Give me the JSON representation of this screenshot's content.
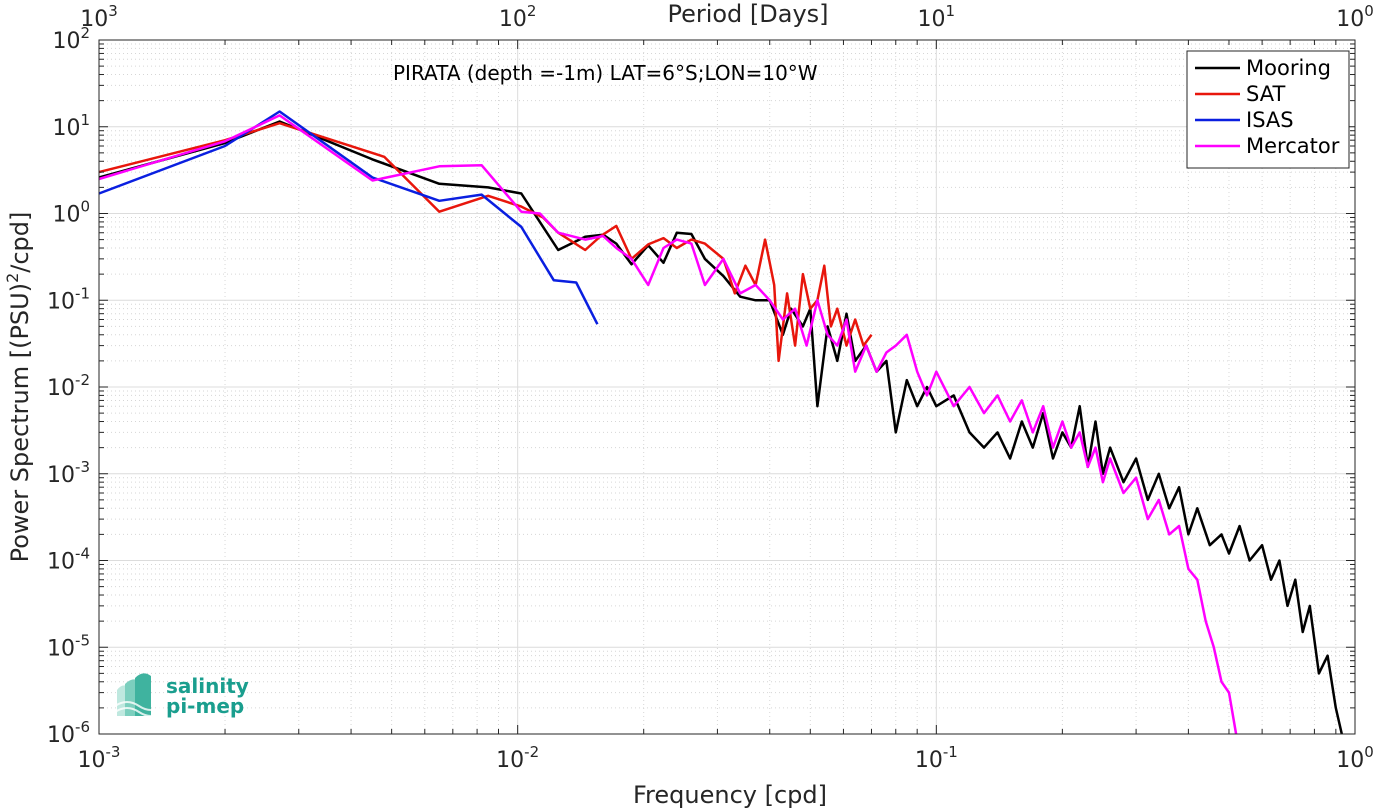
{
  "chart_data": {
    "type": "line",
    "annotation": "PIRATA (depth =-1m) LAT=6°S;LON=10°W",
    "xlabel": "Frequency [cpd]",
    "ylabel_pre": "Power Spectrum [(PSU)",
    "ylabel_sup": "2",
    "ylabel_post": "/cpd]",
    "top_axis_label": "Period [Days]",
    "x_scale": "log",
    "y_scale": "log",
    "xlim": [
      0.001,
      1
    ],
    "ylim": [
      1e-06,
      100
    ],
    "grid": true,
    "legend_position": "top-right",
    "x_ticks": [
      {
        "base": "10",
        "exp": "-3"
      },
      {
        "base": "10",
        "exp": "-2"
      },
      {
        "base": "10",
        "exp": "-1"
      },
      {
        "base": "10",
        "exp": "0"
      }
    ],
    "top_ticks": [
      {
        "base": "10",
        "exp": "3"
      },
      {
        "base": "10",
        "exp": "2"
      },
      {
        "base": "10",
        "exp": "1"
      },
      {
        "base": "10",
        "exp": "0"
      }
    ],
    "y_ticks": [
      {
        "base": "10",
        "exp": "-6"
      },
      {
        "base": "10",
        "exp": "-5"
      },
      {
        "base": "10",
        "exp": "-4"
      },
      {
        "base": "10",
        "exp": "-3"
      },
      {
        "base": "10",
        "exp": "-2"
      },
      {
        "base": "10",
        "exp": "-1"
      },
      {
        "base": "10",
        "exp": "0"
      },
      {
        "base": "10",
        "exp": "1"
      },
      {
        "base": "10",
        "exp": "2"
      }
    ],
    "series": [
      {
        "name": "Mooring",
        "color": "#000000",
        "points": [
          [
            0.001,
            2.6
          ],
          [
            0.002,
            6.5
          ],
          [
            0.0027,
            11.5
          ],
          [
            0.0045,
            4.2
          ],
          [
            0.0065,
            2.2
          ],
          [
            0.0085,
            2.0
          ],
          [
            0.0102,
            1.7
          ],
          [
            0.0115,
            0.7
          ],
          [
            0.0125,
            0.38
          ],
          [
            0.0145,
            0.54
          ],
          [
            0.016,
            0.57
          ],
          [
            0.0172,
            0.45
          ],
          [
            0.0187,
            0.26
          ],
          [
            0.0205,
            0.43
          ],
          [
            0.0223,
            0.27
          ],
          [
            0.024,
            0.6
          ],
          [
            0.026,
            0.58
          ],
          [
            0.028,
            0.3
          ],
          [
            0.031,
            0.19
          ],
          [
            0.034,
            0.11
          ],
          [
            0.037,
            0.1
          ],
          [
            0.04,
            0.1
          ],
          [
            0.043,
            0.04
          ],
          [
            0.045,
            0.08
          ],
          [
            0.048,
            0.05
          ],
          [
            0.05,
            0.08
          ],
          [
            0.052,
            0.006
          ],
          [
            0.055,
            0.05
          ],
          [
            0.058,
            0.02
          ],
          [
            0.061,
            0.07
          ],
          [
            0.064,
            0.02
          ],
          [
            0.068,
            0.03
          ],
          [
            0.072,
            0.015
          ],
          [
            0.076,
            0.02
          ],
          [
            0.08,
            0.003
          ],
          [
            0.085,
            0.012
          ],
          [
            0.09,
            0.006
          ],
          [
            0.095,
            0.01
          ],
          [
            0.1,
            0.006
          ],
          [
            0.11,
            0.008
          ],
          [
            0.12,
            0.003
          ],
          [
            0.13,
            0.002
          ],
          [
            0.14,
            0.003
          ],
          [
            0.15,
            0.0015
          ],
          [
            0.16,
            0.004
          ],
          [
            0.17,
            0.002
          ],
          [
            0.18,
            0.005
          ],
          [
            0.19,
            0.0015
          ],
          [
            0.2,
            0.003
          ],
          [
            0.21,
            0.002
          ],
          [
            0.22,
            0.006
          ],
          [
            0.23,
            0.0012
          ],
          [
            0.24,
            0.004
          ],
          [
            0.25,
            0.001
          ],
          [
            0.26,
            0.002
          ],
          [
            0.28,
            0.0008
          ],
          [
            0.3,
            0.0015
          ],
          [
            0.32,
            0.0005
          ],
          [
            0.34,
            0.001
          ],
          [
            0.36,
            0.0004
          ],
          [
            0.38,
            0.0007
          ],
          [
            0.4,
            0.0002
          ],
          [
            0.42,
            0.0004
          ],
          [
            0.45,
            0.00015
          ],
          [
            0.48,
            0.0002
          ],
          [
            0.5,
            0.00012
          ],
          [
            0.53,
            0.00025
          ],
          [
            0.56,
            0.0001
          ],
          [
            0.6,
            0.00015
          ],
          [
            0.63,
            6e-05
          ],
          [
            0.66,
            0.0001
          ],
          [
            0.69,
            3e-05
          ],
          [
            0.72,
            6e-05
          ],
          [
            0.75,
            1.5e-05
          ],
          [
            0.78,
            3e-05
          ],
          [
            0.82,
            5e-06
          ],
          [
            0.86,
            8e-06
          ],
          [
            0.9,
            2e-06
          ],
          [
            0.93,
            1e-06
          ]
        ]
      },
      {
        "name": "SAT",
        "color": "#e8160c",
        "points": [
          [
            0.001,
            3.0
          ],
          [
            0.002,
            7.0
          ],
          [
            0.0027,
            11.0
          ],
          [
            0.0048,
            4.5
          ],
          [
            0.0065,
            1.05
          ],
          [
            0.0085,
            1.6
          ],
          [
            0.0102,
            1.2
          ],
          [
            0.0115,
            0.9
          ],
          [
            0.0125,
            0.6
          ],
          [
            0.0145,
            0.38
          ],
          [
            0.0158,
            0.55
          ],
          [
            0.0172,
            0.72
          ],
          [
            0.0187,
            0.3
          ],
          [
            0.0205,
            0.44
          ],
          [
            0.0223,
            0.52
          ],
          [
            0.024,
            0.4
          ],
          [
            0.026,
            0.5
          ],
          [
            0.028,
            0.45
          ],
          [
            0.031,
            0.3
          ],
          [
            0.033,
            0.12
          ],
          [
            0.035,
            0.25
          ],
          [
            0.037,
            0.15
          ],
          [
            0.039,
            0.5
          ],
          [
            0.041,
            0.15
          ],
          [
            0.042,
            0.02
          ],
          [
            0.044,
            0.12
          ],
          [
            0.046,
            0.03
          ],
          [
            0.048,
            0.2
          ],
          [
            0.05,
            0.08
          ],
          [
            0.052,
            0.1
          ],
          [
            0.054,
            0.25
          ],
          [
            0.056,
            0.05
          ],
          [
            0.058,
            0.08
          ],
          [
            0.061,
            0.03
          ],
          [
            0.064,
            0.06
          ],
          [
            0.067,
            0.03
          ],
          [
            0.07,
            0.04
          ]
        ]
      },
      {
        "name": "ISAS",
        "color": "#0a1fe0",
        "points": [
          [
            0.001,
            1.7
          ],
          [
            0.002,
            6.0
          ],
          [
            0.0027,
            15.0
          ],
          [
            0.0045,
            2.6
          ],
          [
            0.0065,
            1.4
          ],
          [
            0.0082,
            1.65
          ],
          [
            0.0102,
            0.7
          ],
          [
            0.0122,
            0.17
          ],
          [
            0.0138,
            0.16
          ],
          [
            0.0155,
            0.053
          ]
        ]
      },
      {
        "name": "Mercator",
        "color": "#ff00ff",
        "points": [
          [
            0.001,
            2.5
          ],
          [
            0.002,
            6.8
          ],
          [
            0.0027,
            13.5
          ],
          [
            0.0045,
            2.4
          ],
          [
            0.0065,
            3.5
          ],
          [
            0.0082,
            3.6
          ],
          [
            0.0102,
            1.05
          ],
          [
            0.0113,
            1.0
          ],
          [
            0.0125,
            0.6
          ],
          [
            0.0145,
            0.5
          ],
          [
            0.016,
            0.55
          ],
          [
            0.0172,
            0.4
          ],
          [
            0.0187,
            0.3
          ],
          [
            0.0205,
            0.15
          ],
          [
            0.0223,
            0.4
          ],
          [
            0.024,
            0.5
          ],
          [
            0.026,
            0.45
          ],
          [
            0.028,
            0.15
          ],
          [
            0.031,
            0.3
          ],
          [
            0.034,
            0.12
          ],
          [
            0.037,
            0.15
          ],
          [
            0.04,
            0.1
          ],
          [
            0.043,
            0.06
          ],
          [
            0.046,
            0.08
          ],
          [
            0.049,
            0.03
          ],
          [
            0.052,
            0.1
          ],
          [
            0.055,
            0.04
          ],
          [
            0.058,
            0.03
          ],
          [
            0.061,
            0.06
          ],
          [
            0.064,
            0.015
          ],
          [
            0.068,
            0.03
          ],
          [
            0.072,
            0.015
          ],
          [
            0.076,
            0.025
          ],
          [
            0.08,
            0.03
          ],
          [
            0.085,
            0.04
          ],
          [
            0.09,
            0.015
          ],
          [
            0.095,
            0.008
          ],
          [
            0.1,
            0.015
          ],
          [
            0.11,
            0.006
          ],
          [
            0.12,
            0.01
          ],
          [
            0.13,
            0.005
          ],
          [
            0.14,
            0.008
          ],
          [
            0.15,
            0.004
          ],
          [
            0.16,
            0.007
          ],
          [
            0.17,
            0.003
          ],
          [
            0.18,
            0.006
          ],
          [
            0.19,
            0.002
          ],
          [
            0.2,
            0.004
          ],
          [
            0.21,
            0.002
          ],
          [
            0.22,
            0.003
          ],
          [
            0.23,
            0.0012
          ],
          [
            0.24,
            0.002
          ],
          [
            0.25,
            0.0008
          ],
          [
            0.26,
            0.0015
          ],
          [
            0.28,
            0.0006
          ],
          [
            0.3,
            0.0009
          ],
          [
            0.32,
            0.0003
          ],
          [
            0.34,
            0.0005
          ],
          [
            0.36,
            0.0002
          ],
          [
            0.38,
            0.00025
          ],
          [
            0.4,
            8e-05
          ],
          [
            0.42,
            6e-05
          ],
          [
            0.44,
            2e-05
          ],
          [
            0.46,
            1e-05
          ],
          [
            0.48,
            4e-06
          ],
          [
            0.5,
            3e-06
          ],
          [
            0.52,
            1e-06
          ]
        ]
      }
    ]
  },
  "logo": {
    "line1": "salinity",
    "line2": "pi-mep"
  }
}
